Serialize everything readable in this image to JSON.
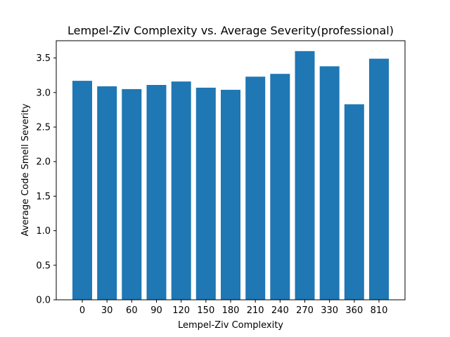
{
  "chart_data": {
    "type": "bar",
    "title": "Lempel-Ziv Complexity vs. Average Severity(professional)",
    "xlabel": "Lempel-Ziv Complexity",
    "ylabel": "Average Code Smell Severity",
    "categories": [
      "0",
      "30",
      "60",
      "90",
      "120",
      "150",
      "180",
      "210",
      "240",
      "270",
      "330",
      "360",
      "810"
    ],
    "values": [
      3.17,
      3.09,
      3.05,
      3.11,
      3.16,
      3.07,
      3.04,
      3.23,
      3.27,
      3.6,
      3.38,
      2.83,
      3.49
    ],
    "ylim": [
      0,
      3.75
    ],
    "yticks": [
      "0.0",
      "0.5",
      "1.0",
      "1.5",
      "2.0",
      "2.5",
      "3.0",
      "3.5"
    ],
    "bar_color": "#1f77b4",
    "grid": false,
    "legend": "none"
  }
}
